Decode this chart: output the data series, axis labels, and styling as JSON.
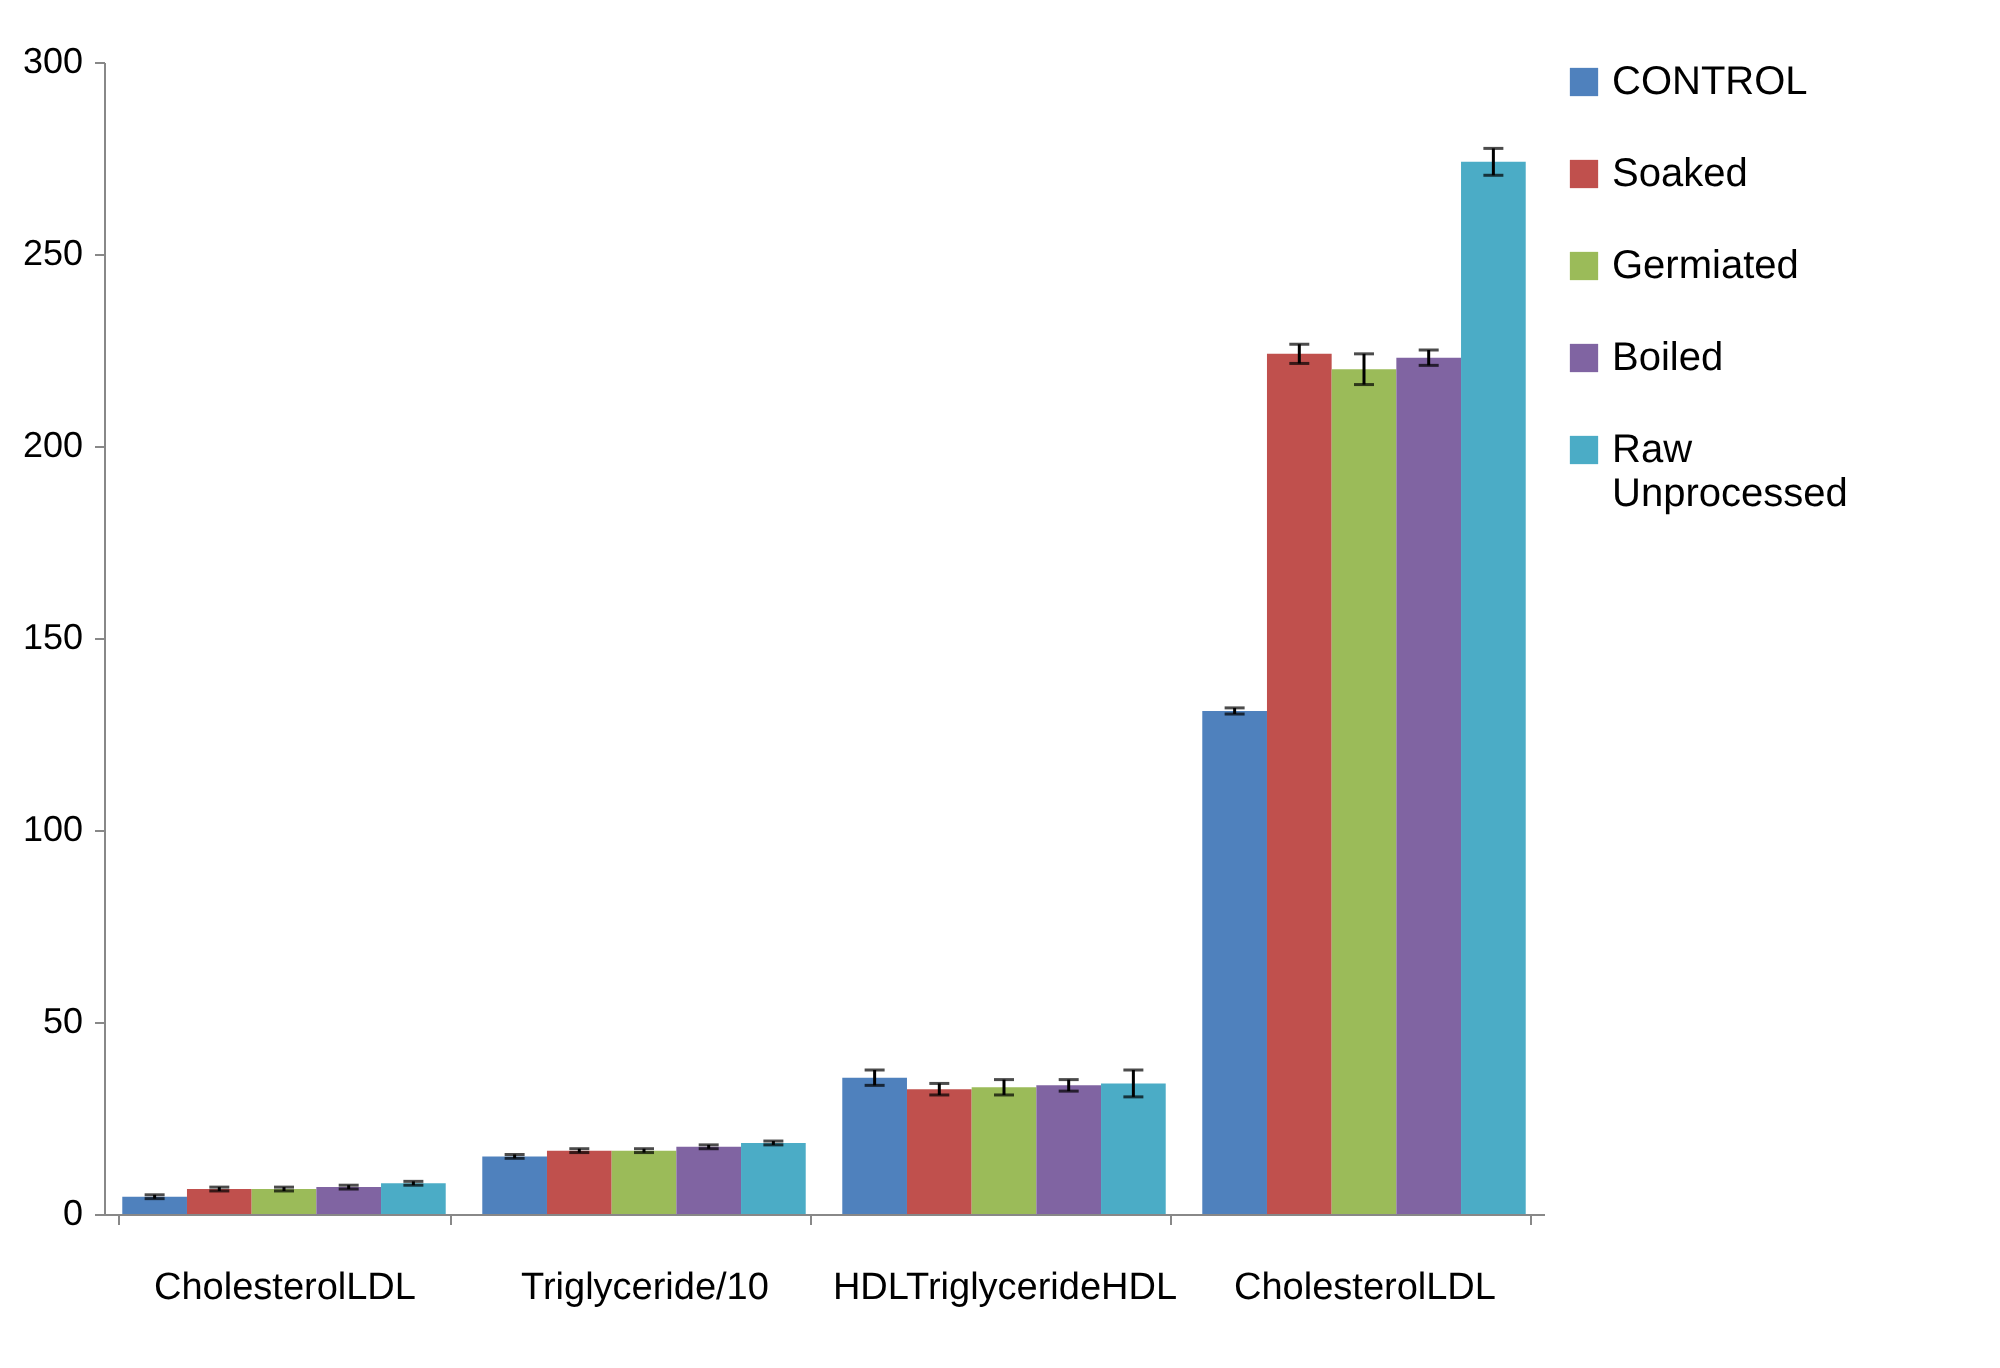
{
  "chart_data": {
    "type": "bar",
    "categories": [
      "CholesterolLDL",
      "Triglyceride/10",
      "HDLTriglycerideHDL",
      "CholesterolLDL"
    ],
    "series": [
      {
        "name": "CONTROL",
        "color": "#4f81bd",
        "values": [
          4.5,
          15,
          35.5,
          131
        ],
        "errors": [
          0.5,
          0.5,
          2,
          0.8
        ]
      },
      {
        "name": "Soaked",
        "color": "#c0504d",
        "values": [
          6.5,
          16.5,
          32.5,
          224
        ],
        "errors": [
          0.5,
          0.5,
          1.5,
          2.5
        ]
      },
      {
        "name": "Germiated",
        "color": "#9bbb59",
        "values": [
          6.5,
          16.5,
          33,
          220
        ],
        "errors": [
          0.5,
          0.5,
          2,
          4
        ]
      },
      {
        "name": "Boiled",
        "color": "#8064a2",
        "values": [
          7,
          17.5,
          33.5,
          223
        ],
        "errors": [
          0.5,
          0.5,
          1.5,
          2
        ]
      },
      {
        "name": "Raw Unprocessed",
        "color": "#4bacc6",
        "values": [
          8,
          18.5,
          34,
          274
        ],
        "errors": [
          0.5,
          0.5,
          3.5,
          3.5
        ]
      }
    ],
    "ylim": [
      0,
      300
    ],
    "yticks": [
      0,
      50,
      100,
      150,
      200,
      250,
      300
    ],
    "legend": "right"
  }
}
